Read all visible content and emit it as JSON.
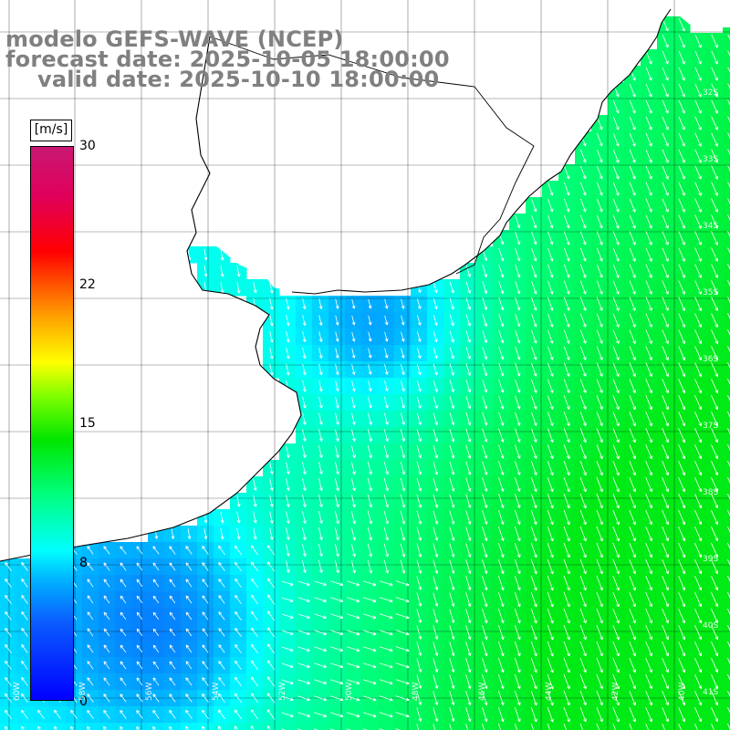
{
  "title": {
    "model": "modelo GEFS-WAVE (NCEP)",
    "forecast": "forecast date: 2025-10-05 18:00:00",
    "valid": "valid date: 2025-10-10 18:00:00"
  },
  "colorbar": {
    "units": "[m/s]",
    "ticks": [
      "30",
      "22",
      "15",
      "8",
      "0"
    ],
    "min": 0,
    "max": 30,
    "colors": [
      "#0000ff",
      "#00b6ff",
      "#00ffff",
      "#00ff80",
      "#00e600",
      "#80ff00",
      "#ffff00",
      "#ffa500",
      "#ff0000",
      "#c81873"
    ]
  },
  "map": {
    "region": "Rio de la Plata / South Atlantic (Argentina–Uruguay–Brazil coast)",
    "land_color": "#ffffff",
    "coast_color": "#000000",
    "grid_color": "#000000",
    "arrow_color": "#ffffff",
    "lon_labels": [
      "60W",
      "58W",
      "56W",
      "54W",
      "52W",
      "50W",
      "48W",
      "46W",
      "44W",
      "42W",
      "40W"
    ],
    "lat_labels": [
      "32S",
      "33S",
      "34S",
      "35S",
      "36S",
      "37S",
      "38S",
      "39S",
      "40S",
      "41S"
    ]
  }
}
